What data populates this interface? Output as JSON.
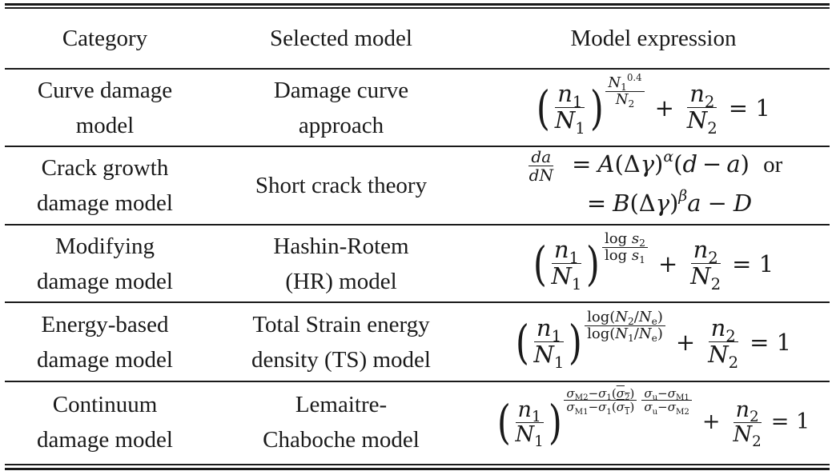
{
  "table": {
    "headers": [
      "Category",
      "Selected model",
      "Model expression"
    ],
    "rows": [
      {
        "category": [
          "Curve damage",
          "model"
        ],
        "model": [
          "Damage curve",
          "approach"
        ]
      },
      {
        "category": [
          "Crack growth",
          "damage model"
        ],
        "model": [
          "Short crack theory"
        ]
      },
      {
        "category": [
          "Modifying",
          "damage model"
        ],
        "model": [
          "Hashin-Rotem",
          "(HR) model"
        ]
      },
      {
        "category": [
          "Energy-based",
          "damage model"
        ],
        "model": [
          "Total Strain energy",
          "density (TS) model"
        ]
      },
      {
        "category": [
          "Continuum",
          "damage model"
        ],
        "model": [
          "Lemaitre-",
          "Chaboche model"
        ]
      }
    ],
    "expression_text": {
      "or": "or",
      "log": "log",
      "eq_one": "= 1"
    }
  }
}
